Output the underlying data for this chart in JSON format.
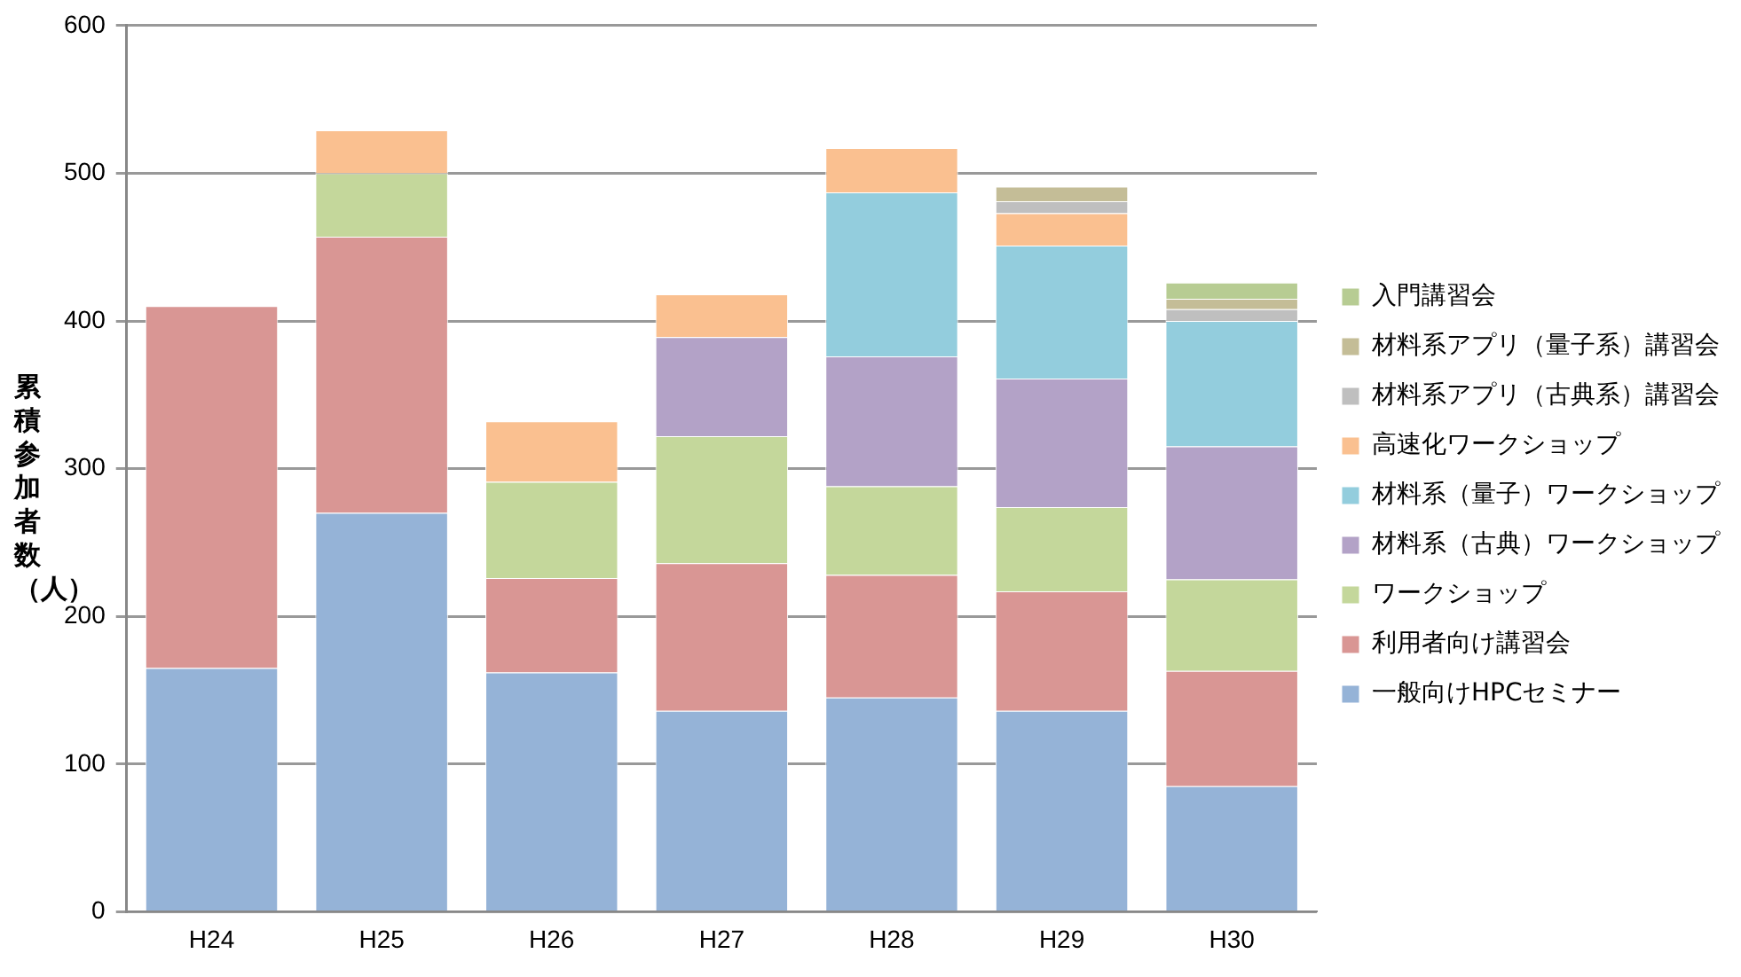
{
  "chart_data": {
    "type": "bar",
    "stacked": true,
    "ylabel": "累積参加者数（人）",
    "categories": [
      "H24",
      "H25",
      "H26",
      "H27",
      "H28",
      "H29",
      "H30"
    ],
    "ylim": [
      0,
      600
    ],
    "yticks": [
      0,
      100,
      200,
      300,
      400,
      500,
      600
    ],
    "grid": "y",
    "legend": "right",
    "series": [
      {
        "name": "一般向けHPCセミナー",
        "color": "#95b3d7",
        "values": [
          165,
          270,
          162,
          136,
          145,
          136,
          85
        ]
      },
      {
        "name": "利用者向け講習会",
        "color": "#d99694",
        "values": [
          245,
          187,
          64,
          100,
          83,
          81,
          78
        ]
      },
      {
        "name": "ワークショップ",
        "color": "#c4d79b",
        "values": [
          null,
          43,
          65,
          86,
          60,
          57,
          62
        ]
      },
      {
        "name": "材料系（古典）ワークショップ",
        "color": "#b3a2c7",
        "values": [
          null,
          null,
          null,
          67,
          88,
          87,
          90
        ]
      },
      {
        "name": "材料系（量子）ワークショップ",
        "color": "#93cddd",
        "values": [
          null,
          null,
          null,
          null,
          111,
          90,
          85
        ]
      },
      {
        "name": "高速化ワークショップ",
        "color": "#fac090",
        "values": [
          null,
          29,
          41,
          29,
          30,
          22,
          null
        ]
      },
      {
        "name": "材料系アプリ（古典系）講習会",
        "color": "#bfbfbf",
        "values": [
          null,
          null,
          null,
          null,
          null,
          8,
          8
        ]
      },
      {
        "name": "材料系アプリ（量子系）講習会",
        "color": "#c4bd97",
        "values": [
          null,
          null,
          null,
          null,
          null,
          10,
          7
        ]
      },
      {
        "name": "入門講習会",
        "color": "#b7cc93",
        "values": [
          null,
          null,
          null,
          null,
          null,
          null,
          11
        ]
      }
    ]
  }
}
